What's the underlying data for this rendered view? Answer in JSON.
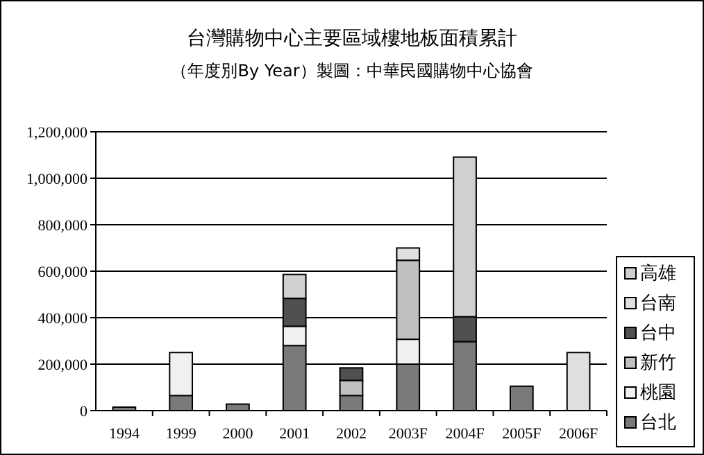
{
  "chart_data": {
    "type": "bar",
    "title": "台灣購物中心主要區域樓地板面積累計",
    "subtitle": "（年度別By Year）製圖：中華民國購物中心協會",
    "categories": [
      "1994",
      "1999",
      "2000",
      "2001",
      "2002",
      "2003F",
      "2004F",
      "2005F",
      "2006F"
    ],
    "stacked": true,
    "series": [
      {
        "name": "台北",
        "color": "#7a7a7a",
        "values": [
          15000,
          65000,
          28000,
          280000,
          65000,
          200000,
          297000,
          105000,
          null
        ]
      },
      {
        "name": "桃園",
        "color": "#f0f0f0",
        "values": [
          null,
          185000,
          null,
          83000,
          null,
          107000,
          null,
          null,
          null
        ]
      },
      {
        "name": "新竹",
        "color": "#c0c0c0",
        "values": [
          null,
          null,
          null,
          null,
          65000,
          340000,
          null,
          null,
          null
        ]
      },
      {
        "name": "台中",
        "color": "#505050",
        "values": [
          null,
          null,
          null,
          120000,
          54000,
          null,
          107000,
          null,
          null
        ]
      },
      {
        "name": "台南",
        "color": "#e0e0e0",
        "values": [
          null,
          null,
          null,
          null,
          null,
          53000,
          null,
          null,
          250000
        ]
      },
      {
        "name": "高雄",
        "color": "#d0d0d0",
        "values": [
          null,
          null,
          null,
          103000,
          null,
          null,
          687000,
          null,
          null
        ]
      }
    ],
    "ylim": [
      0,
      1200000
    ],
    "yticks": [
      {
        "value": 0,
        "label": "0"
      },
      {
        "value": 200000,
        "label": "200,000"
      },
      {
        "value": 400000,
        "label": "400,000"
      },
      {
        "value": 600000,
        "label": "600,000"
      },
      {
        "value": 800000,
        "label": "800,000"
      },
      {
        "value": 1000000,
        "label": "1,000,000"
      },
      {
        "value": 1200000,
        "label": "1,200,000"
      }
    ],
    "grid": "y",
    "legend": "right"
  }
}
